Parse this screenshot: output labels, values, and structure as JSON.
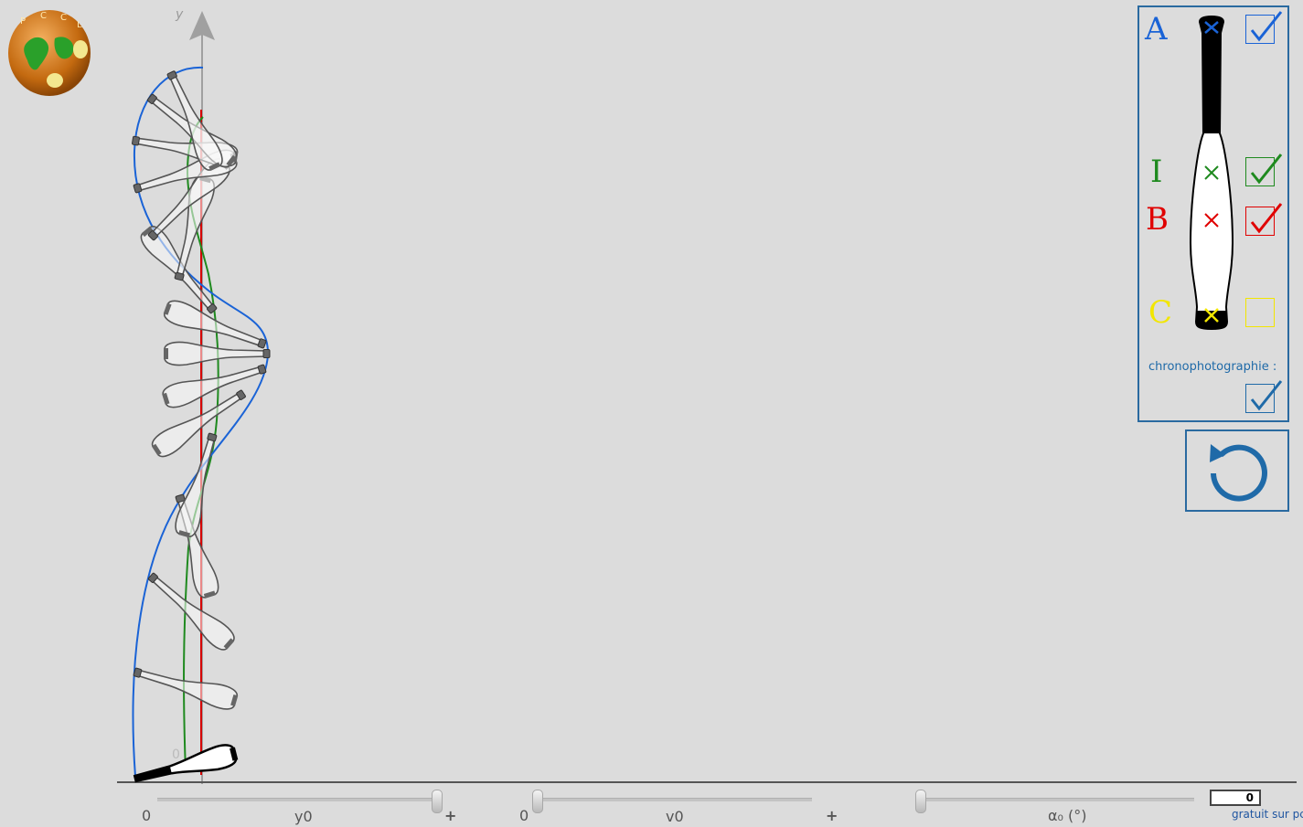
{
  "app": {
    "logo_name": "pccl-logo",
    "axis_y_label": "y",
    "axis_origin_label": "0"
  },
  "points": [
    {
      "id": "A",
      "letter": "A",
      "color": "#1a63d6",
      "checked": true
    },
    {
      "id": "I",
      "letter": "I",
      "color": "#1f8a1f",
      "checked": true
    },
    {
      "id": "B",
      "letter": "B",
      "color": "#e00000",
      "checked": true
    },
    {
      "id": "C",
      "letter": "C",
      "color": "#f2e600",
      "checked": false
    }
  ],
  "chrono": {
    "label": "chronophotographie :",
    "checked": true,
    "color": "#1f6aa8"
  },
  "reset": {
    "icon": "reset-icon",
    "color": "#1f6aa8"
  },
  "sliders": {
    "y0": {
      "min_label": "0",
      "label": "y0",
      "max_label": "+",
      "value": 1
    },
    "v0": {
      "min_label": "0",
      "label": "v0",
      "max_label": "+",
      "value": 0
    },
    "alpha0": {
      "label": "α₀ (°)",
      "value": 0
    }
  },
  "counter": {
    "value": "0"
  },
  "footer": {
    "text": "gratuit sur pccl"
  }
}
